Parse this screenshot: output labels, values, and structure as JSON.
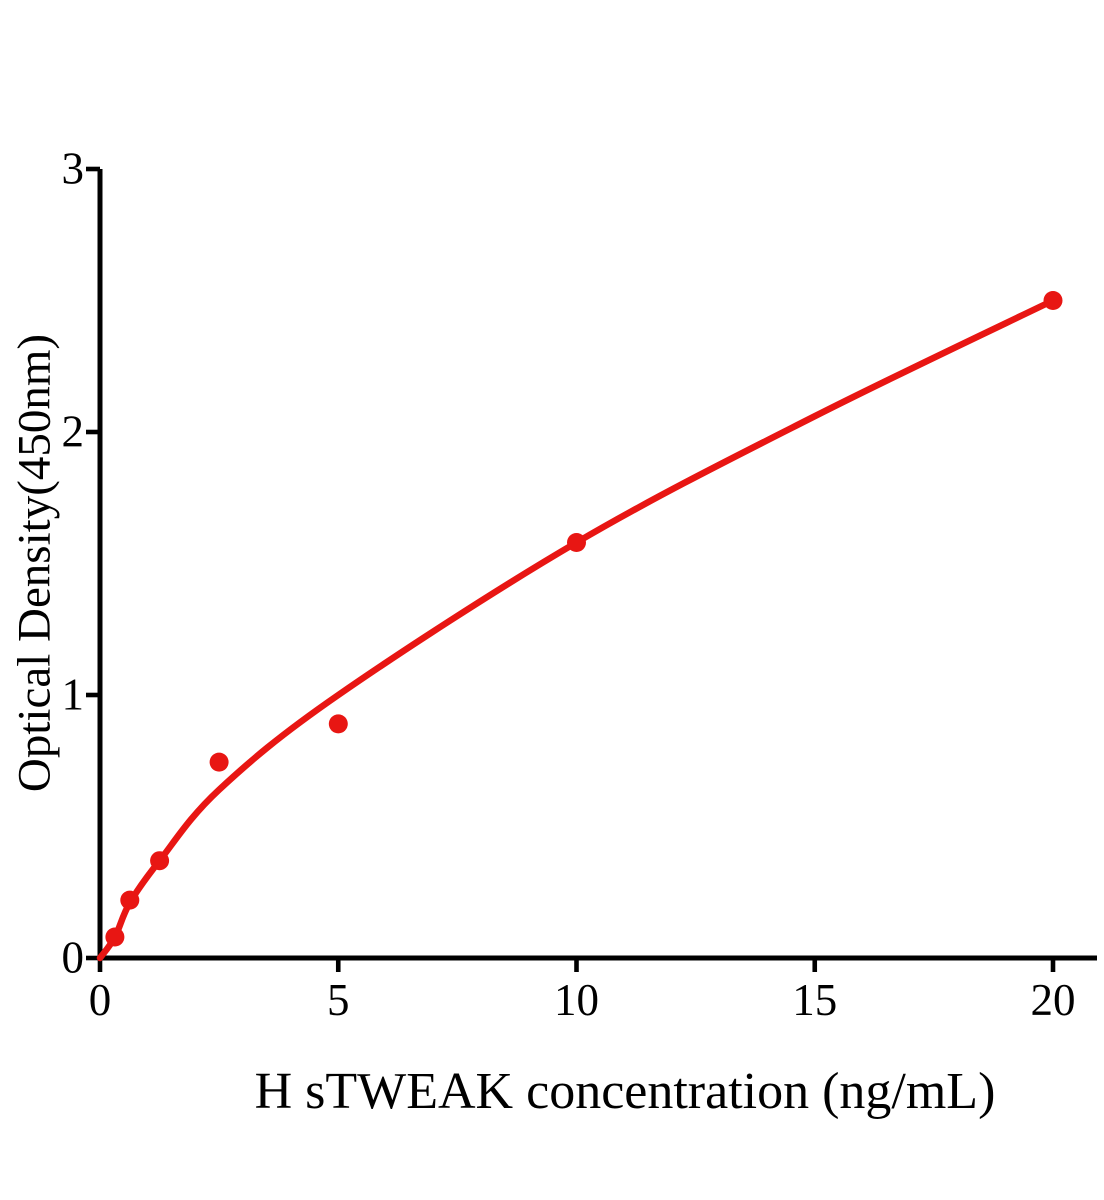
{
  "chart_data": {
    "type": "scatter",
    "title": "",
    "xlabel": "H sTWEAK concentration (ng/mL)",
    "ylabel": "Optical Density(450nm)",
    "x_tick_labels": [
      "0",
      "5",
      "10",
      "15",
      "20"
    ],
    "x_tick_values": [
      0,
      5,
      10,
      15,
      20
    ],
    "y_tick_labels": [
      "0",
      "1",
      "2",
      "3"
    ],
    "y_tick_values": [
      0,
      1,
      2,
      3
    ],
    "xlim": [
      0,
      20.9
    ],
    "ylim": [
      0,
      3
    ],
    "grid": false,
    "legend_position": "none",
    "points": [
      {
        "x": 0.313,
        "y": 0.08
      },
      {
        "x": 0.625,
        "y": 0.22
      },
      {
        "x": 1.25,
        "y": 0.37
      },
      {
        "x": 2.5,
        "y": 0.745
      },
      {
        "x": 5,
        "y": 0.89
      },
      {
        "x": 10,
        "y": 1.58
      },
      {
        "x": 20,
        "y": 2.5
      }
    ],
    "fit_curve": [
      {
        "x": 0,
        "y": 0
      },
      {
        "x": 0.313,
        "y": 0.08
      },
      {
        "x": 0.625,
        "y": 0.21
      },
      {
        "x": 1.25,
        "y": 0.37
      },
      {
        "x": 2.5,
        "y": 0.64
      },
      {
        "x": 5,
        "y": 1.0
      },
      {
        "x": 10,
        "y": 1.58
      },
      {
        "x": 15,
        "y": 2.06
      },
      {
        "x": 20,
        "y": 2.5
      }
    ],
    "colors": {
      "curve": "#e81613",
      "marker": "#e81613",
      "axis": "#000000",
      "background": "#ffffff"
    }
  }
}
